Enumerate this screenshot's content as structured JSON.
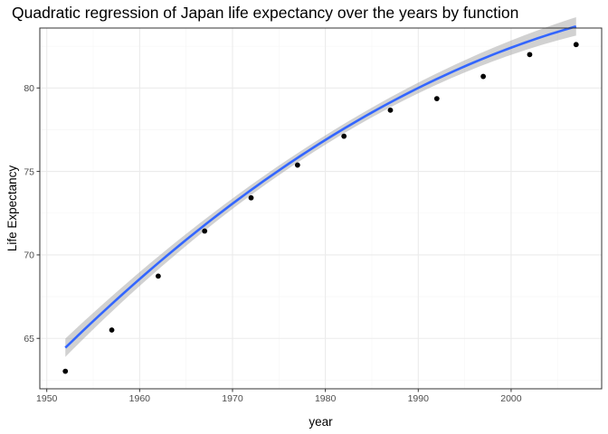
{
  "chart_data": {
    "type": "scatter",
    "title": "Quadratic regression of Japan life expectancy over the years by function",
    "xlabel": "year",
    "ylabel": "Life Expectancy",
    "xlim": [
      1949.25,
      2009.75
    ],
    "ylim": [
      61.98,
      83.59
    ],
    "x_ticks": [
      1950,
      1960,
      1970,
      1980,
      1990,
      2000
    ],
    "x_tick_labels": [
      "1950",
      "1960",
      "1970",
      "1980",
      "1990",
      "2000"
    ],
    "y_ticks": [
      65,
      70,
      75,
      80
    ],
    "y_tick_labels": [
      "65",
      "70",
      "75",
      "80"
    ],
    "grid": true,
    "points": {
      "x": [
        1952,
        1957,
        1962,
        1967,
        1972,
        1977,
        1982,
        1987,
        1992,
        1997,
        2002,
        2007
      ],
      "y": [
        63.03,
        65.5,
        68.73,
        71.43,
        73.42,
        75.38,
        77.11,
        78.67,
        79.36,
        80.69,
        82.0,
        82.6
      ]
    },
    "fit": {
      "method": "quadratic regression",
      "x_range": [
        1952,
        2007
      ],
      "coefficients_centered_at": 1979.5,
      "a": -0.0035,
      "b": 0.35,
      "c": 76.71,
      "ci_halfwidth_ends": 0.55,
      "ci_halfwidth_mid": 0.28
    },
    "colors": {
      "points": "#000000",
      "fit_line": "#3366ff",
      "ci_band": "#999999",
      "grid_major": "#ebebeb",
      "grid_minor": "#f5f5f5",
      "panel_border": "#333333"
    }
  }
}
